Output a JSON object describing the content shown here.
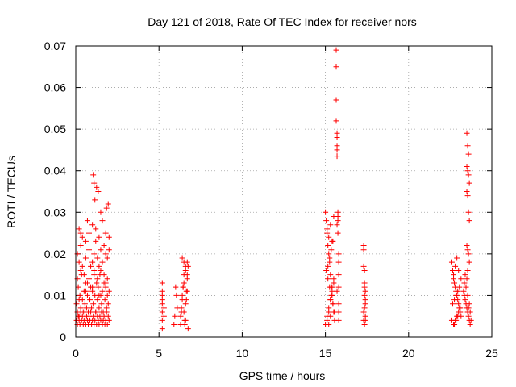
{
  "chart_data": {
    "type": "scatter",
    "title": "Day 121 of 2018, Rate Of TEC Index for receiver nors",
    "xlabel": "GPS time / hours",
    "ylabel": "ROTI / TECUs",
    "xlim": [
      0,
      25
    ],
    "ylim": [
      0,
      0.07
    ],
    "xticks": [
      "0",
      "5",
      "10",
      "15",
      "20",
      "25"
    ],
    "yticks": [
      "0",
      "0.01",
      "0.02",
      "0.03",
      "0.04",
      "0.05",
      "0.06",
      "0.07"
    ],
    "grid": true,
    "marker": "+",
    "color": "#ff0000",
    "series": [
      {
        "name": "ROTI",
        "x": [
          0.05,
          0.1,
          0.15,
          0.2,
          0.25,
          0.3,
          0.35,
          0.4,
          0.45,
          0.5,
          0.55,
          0.6,
          0.65,
          0.7,
          0.75,
          0.8,
          0.85,
          0.9,
          0.95,
          1.0,
          1.05,
          1.1,
          1.15,
          1.2,
          1.25,
          1.3,
          1.35,
          1.4,
          1.45,
          1.5,
          1.55,
          1.6,
          1.65,
          1.7,
          1.75,
          1.8,
          1.85,
          1.9,
          1.95,
          2.0,
          0.05,
          0.1,
          0.15,
          0.2,
          0.25,
          0.3,
          0.35,
          0.4,
          0.45,
          0.5,
          0.55,
          0.6,
          0.65,
          0.7,
          0.75,
          0.8,
          0.85,
          0.9,
          0.95,
          1.0,
          1.05,
          1.1,
          1.15,
          1.2,
          1.25,
          1.3,
          1.35,
          1.4,
          1.45,
          1.5,
          1.55,
          1.6,
          1.65,
          1.7,
          1.75,
          1.8,
          1.85,
          1.9,
          1.95,
          2.0,
          0.1,
          0.2,
          0.3,
          0.4,
          0.6,
          0.8,
          1.0,
          1.1,
          1.2,
          1.3,
          1.4,
          1.5,
          1.6,
          1.7,
          1.8,
          1.9,
          2.0,
          0.2,
          0.4,
          0.6,
          0.8,
          1.0,
          1.2,
          1.4,
          1.6,
          1.8,
          2.0,
          0.3,
          0.7,
          1.05,
          1.1,
          1.15,
          1.25,
          1.35,
          1.5,
          1.85,
          1.95,
          0.1,
          0.3,
          0.5,
          0.7,
          0.9,
          1.1,
          1.3,
          1.5,
          1.7,
          1.9,
          0.2,
          0.6,
          1.0,
          1.4,
          1.8,
          5.2,
          5.2,
          5.2,
          5.2,
          5.2,
          5.2,
          5.2,
          5.2,
          5.3,
          5.3,
          5.9,
          5.95,
          6.0,
          6.05,
          6.1,
          6.3,
          6.35,
          6.4,
          6.45,
          6.5,
          6.55,
          6.6,
          6.65,
          6.7,
          6.75,
          6.3,
          6.4,
          6.5,
          6.6,
          6.7,
          6.35,
          6.45,
          6.55,
          6.65,
          6.75,
          6.4,
          6.5,
          6.6,
          6.7,
          6.5,
          6.6,
          6.7,
          15.0,
          15.05,
          15.1,
          15.15,
          15.2,
          15.25,
          15.3,
          15.35,
          15.4,
          15.45,
          15.5,
          15.55,
          15.0,
          15.1,
          15.2,
          15.3,
          15.4,
          15.5,
          15.05,
          15.15,
          15.25,
          15.35,
          15.45,
          15.55,
          15.1,
          15.2,
          15.3,
          15.4,
          15.5,
          15.15,
          15.25,
          15.35,
          15.45,
          15.1,
          15.2,
          15.3,
          15.4,
          15.5,
          15.2,
          15.3,
          15.65,
          15.65,
          15.65,
          15.65,
          15.7,
          15.7,
          15.7,
          15.7,
          15.7,
          15.75,
          15.75,
          15.75,
          15.7,
          15.75,
          15.7,
          15.8,
          15.8,
          15.8,
          15.8,
          15.8,
          15.8,
          15.8,
          17.3,
          17.3,
          17.3,
          17.35,
          17.35,
          17.35,
          17.4,
          17.4,
          17.4,
          17.35,
          17.3,
          17.4,
          17.3,
          17.35,
          17.4,
          17.35,
          22.6,
          22.65,
          22.7,
          22.75,
          22.8,
          22.85,
          22.9,
          22.95,
          23.0,
          23.05,
          23.1,
          23.15,
          22.6,
          22.7,
          22.8,
          22.9,
          23.0,
          23.1,
          22.65,
          22.75,
          22.85,
          22.95,
          23.05,
          23.15,
          22.7,
          22.8,
          22.9,
          23.0,
          22.75,
          22.85,
          22.95,
          23.3,
          23.35,
          23.4,
          23.45,
          23.5,
          23.55,
          23.6,
          23.65,
          23.7,
          23.75,
          23.35,
          23.45,
          23.55,
          23.65,
          23.4,
          23.5,
          23.6,
          23.7,
          23.5,
          23.55,
          23.6,
          23.5,
          23.55,
          23.6,
          23.65,
          23.5,
          23.55,
          23.6,
          23.65,
          23.5,
          23.55,
          23.6,
          23.65,
          23.55
        ],
        "y": [
          0.008,
          0.006,
          0.012,
          0.005,
          0.01,
          0.007,
          0.015,
          0.009,
          0.006,
          0.011,
          0.008,
          0.013,
          0.007,
          0.01,
          0.006,
          0.014,
          0.009,
          0.012,
          0.007,
          0.011,
          0.008,
          0.016,
          0.01,
          0.006,
          0.013,
          0.009,
          0.012,
          0.007,
          0.015,
          0.01,
          0.008,
          0.011,
          0.006,
          0.013,
          0.009,
          0.012,
          0.007,
          0.01,
          0.008,
          0.011,
          0.004,
          0.003,
          0.005,
          0.004,
          0.003,
          0.006,
          0.004,
          0.005,
          0.003,
          0.004,
          0.006,
          0.003,
          0.005,
          0.004,
          0.003,
          0.005,
          0.004,
          0.006,
          0.003,
          0.004,
          0.005,
          0.003,
          0.004,
          0.006,
          0.003,
          0.005,
          0.004,
          0.003,
          0.005,
          0.004,
          0.006,
          0.003,
          0.004,
          0.005,
          0.003,
          0.004,
          0.006,
          0.003,
          0.005,
          0.004,
          0.02,
          0.018,
          0.022,
          0.017,
          0.019,
          0.021,
          0.018,
          0.02,
          0.023,
          0.019,
          0.017,
          0.021,
          0.018,
          0.022,
          0.02,
          0.019,
          0.021,
          0.026,
          0.024,
          0.023,
          0.025,
          0.027,
          0.026,
          0.024,
          0.028,
          0.025,
          0.024,
          0.025,
          0.028,
          0.039,
          0.037,
          0.033,
          0.036,
          0.035,
          0.03,
          0.031,
          0.032,
          0.014,
          0.016,
          0.015,
          0.013,
          0.017,
          0.015,
          0.014,
          0.016,
          0.015,
          0.014,
          0.009,
          0.011,
          0.012,
          0.01,
          0.013,
          0.002,
          0.004,
          0.006,
          0.008,
          0.009,
          0.01,
          0.011,
          0.013,
          0.007,
          0.005,
          0.003,
          0.005,
          0.012,
          0.01,
          0.007,
          0.003,
          0.006,
          0.009,
          0.012,
          0.015,
          0.004,
          0.008,
          0.011,
          0.014,
          0.017,
          0.005,
          0.01,
          0.013,
          0.016,
          0.018,
          0.007,
          0.012,
          0.003,
          0.009,
          0.002,
          0.019,
          0.018,
          0.017,
          0.015,
          0.006,
          0.004,
          0.011,
          0.03,
          0.028,
          0.025,
          0.022,
          0.02,
          0.018,
          0.015,
          0.012,
          0.01,
          0.008,
          0.006,
          0.004,
          0.003,
          0.005,
          0.007,
          0.009,
          0.011,
          0.013,
          0.016,
          0.014,
          0.012,
          0.01,
          0.008,
          0.006,
          0.004,
          0.006,
          0.009,
          0.012,
          0.014,
          0.017,
          0.019,
          0.021,
          0.023,
          0.026,
          0.024,
          0.027,
          0.023,
          0.029,
          0.003,
          0.005,
          0.069,
          0.065,
          0.057,
          0.052,
          0.049,
          0.048,
          0.046,
          0.045,
          0.0435,
          0.03,
          0.029,
          0.028,
          0.027,
          0.025,
          0.011,
          0.006,
          0.008,
          0.012,
          0.015,
          0.018,
          0.02,
          0.004,
          0.022,
          0.021,
          0.017,
          0.016,
          0.013,
          0.012,
          0.011,
          0.009,
          0.008,
          0.007,
          0.006,
          0.005,
          0.004,
          0.003,
          0.004,
          0.01,
          0.018,
          0.016,
          0.014,
          0.013,
          0.012,
          0.011,
          0.01,
          0.009,
          0.008,
          0.007,
          0.006,
          0.005,
          0.004,
          0.003,
          0.004,
          0.005,
          0.006,
          0.007,
          0.008,
          0.009,
          0.01,
          0.011,
          0.012,
          0.014,
          0.015,
          0.017,
          0.019,
          0.016,
          0.003,
          0.004,
          0.005,
          0.011,
          0.01,
          0.009,
          0.008,
          0.007,
          0.006,
          0.005,
          0.004,
          0.003,
          0.004,
          0.013,
          0.012,
          0.01,
          0.008,
          0.015,
          0.014,
          0.007,
          0.006,
          0.049,
          0.046,
          0.044,
          0.041,
          0.04,
          0.039,
          0.037,
          0.035,
          0.034,
          0.03,
          0.028,
          0.022,
          0.021,
          0.02,
          0.018,
          0.016
        ]
      }
    ]
  }
}
